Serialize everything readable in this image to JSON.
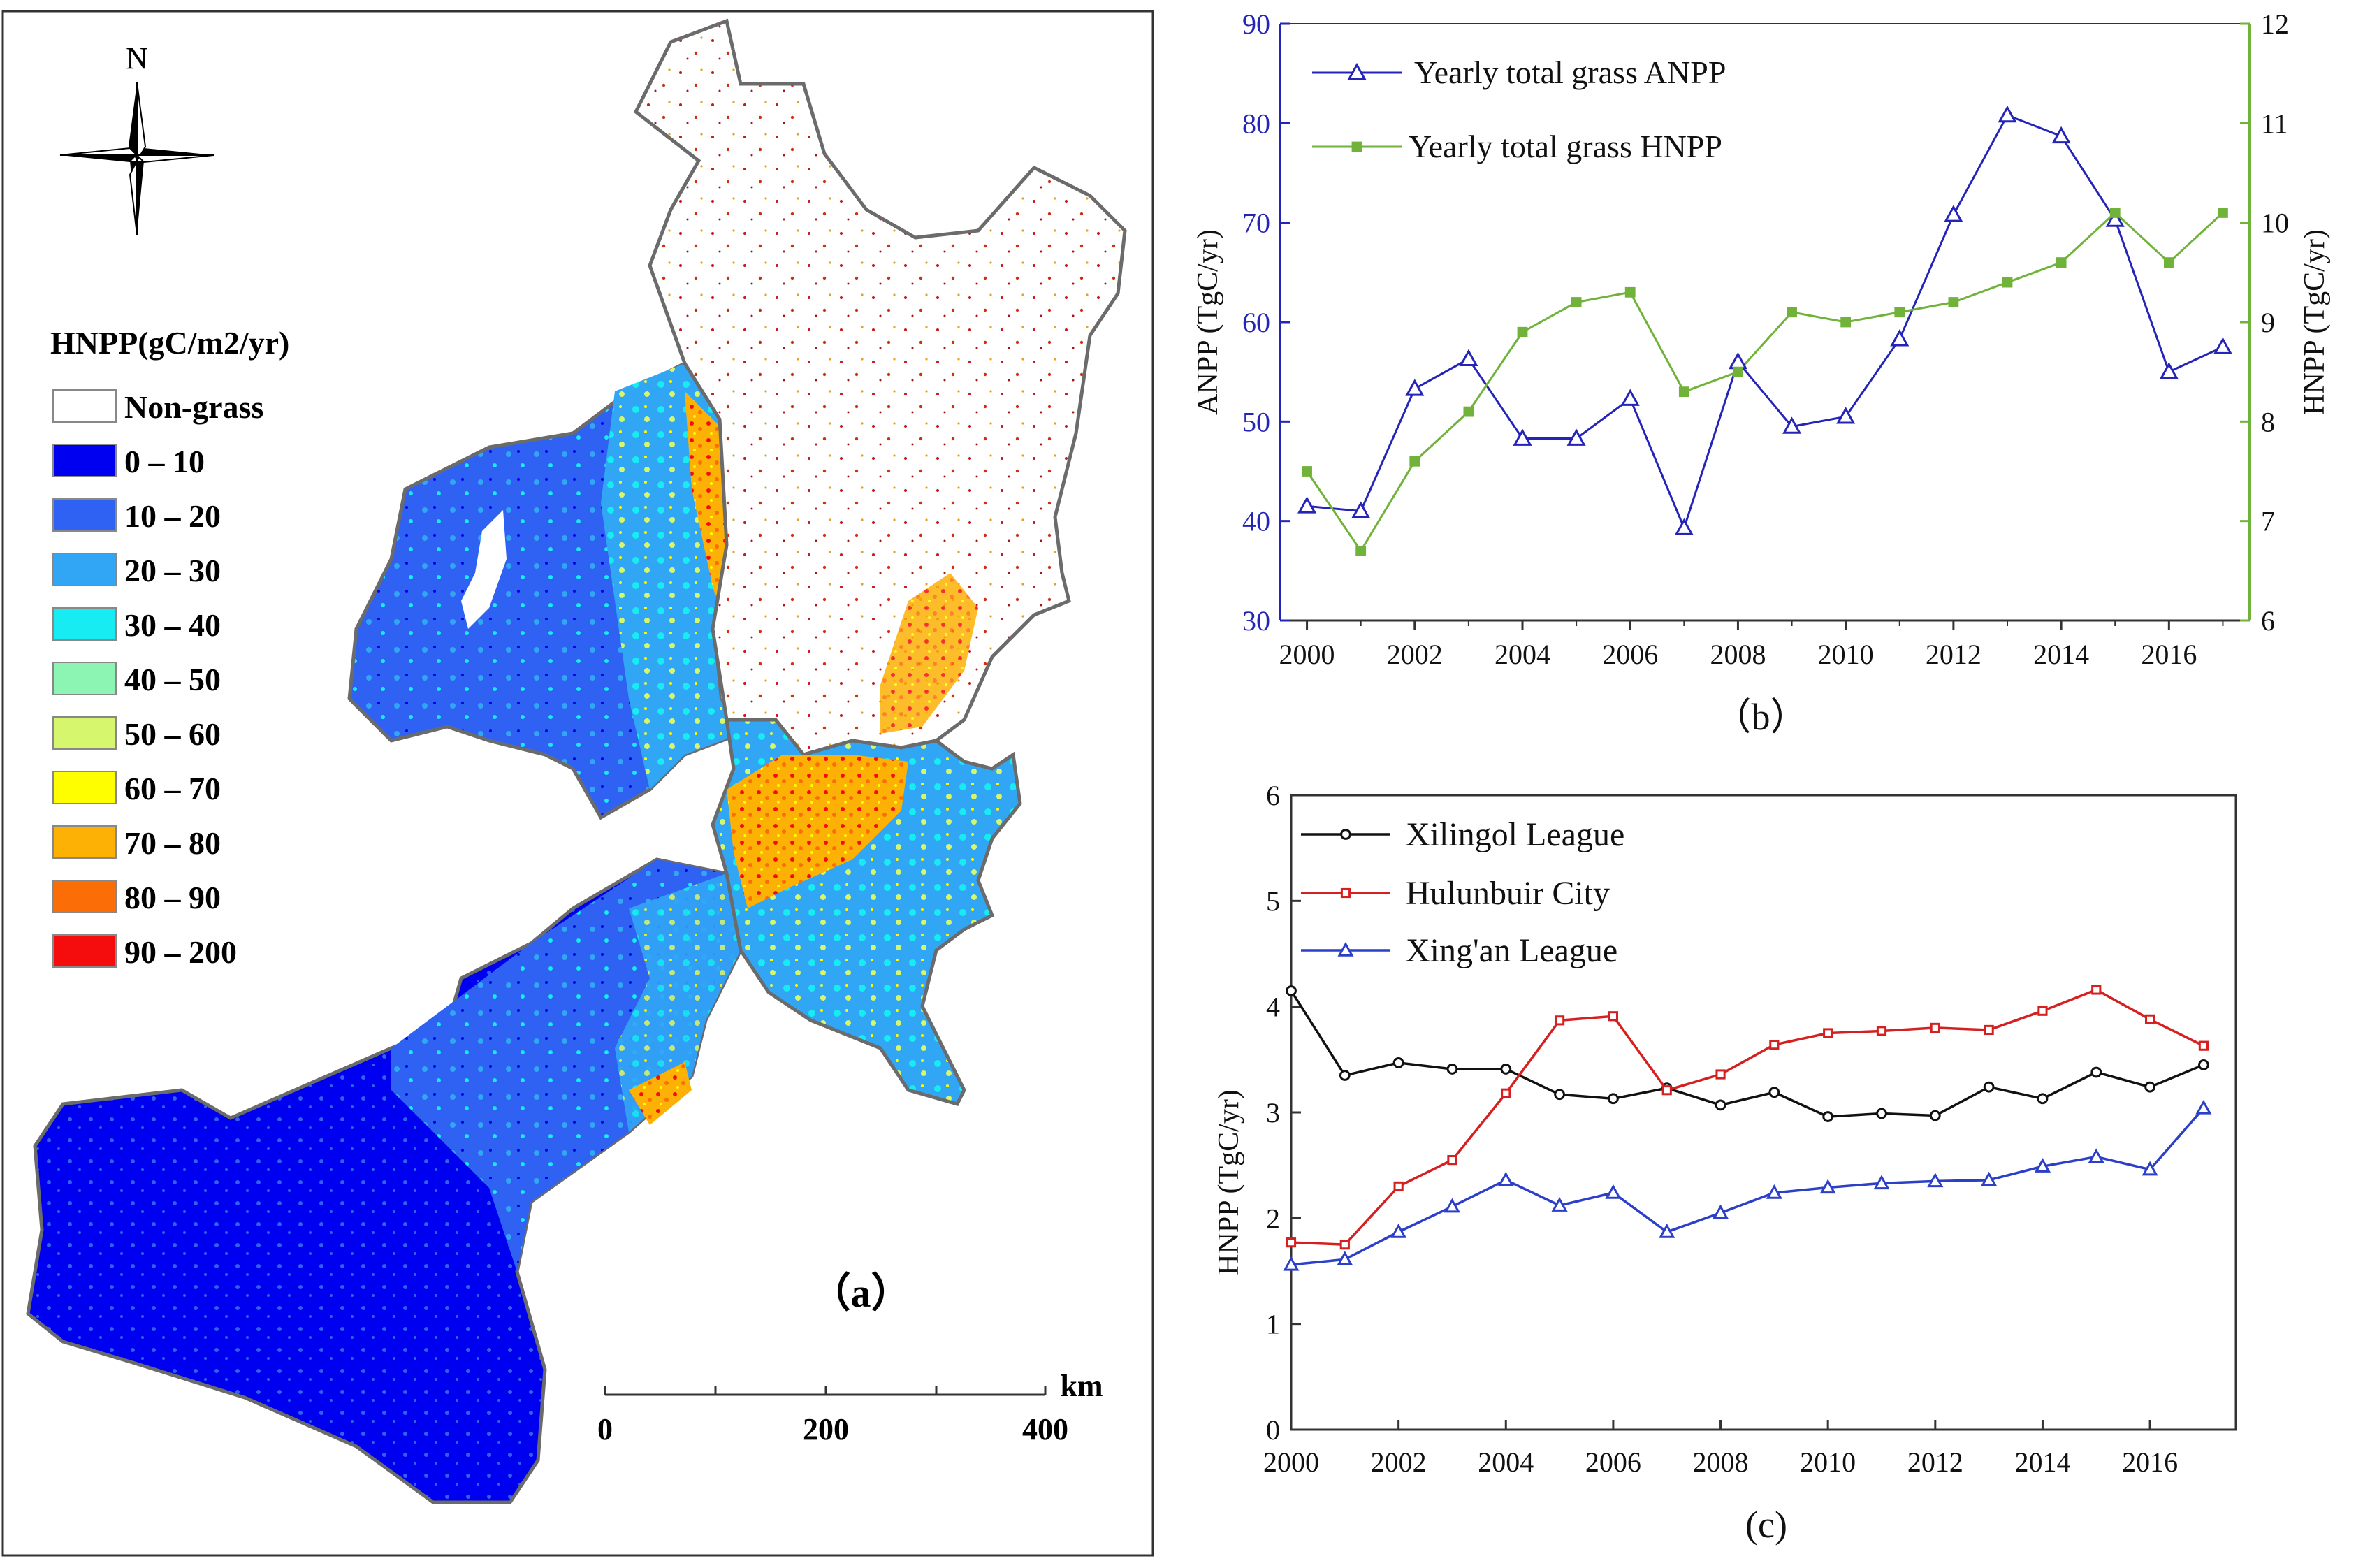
{
  "map": {
    "north_label": "N",
    "legend_title": "HNPP(gC/m2/yr)",
    "legend": [
      {
        "label": "Non-grass",
        "color": "#ffffff"
      },
      {
        "label": "0 – 10",
        "color": "#0000f0"
      },
      {
        "label": "10 – 20",
        "color": "#2f62f2"
      },
      {
        "label": "20 – 30",
        "color": "#31a6f5"
      },
      {
        "label": "30 – 40",
        "color": "#17ecf2"
      },
      {
        "label": "40 – 50",
        "color": "#8cf5b4"
      },
      {
        "label": "50 – 60",
        "color": "#d5f66d"
      },
      {
        "label": "60 – 70",
        "color": "#fefe00"
      },
      {
        "label": "70 – 80",
        "color": "#fdb104"
      },
      {
        "label": "80 – 90",
        "color": "#fb6d06"
      },
      {
        "label": "90 – 200",
        "color": "#f50d0d"
      }
    ],
    "panel_label": "（a）",
    "scale_unit": "km",
    "scale_ticks": [
      "0",
      "200",
      "400"
    ]
  },
  "chart_data": [
    {
      "type": "line",
      "panel": "(b)",
      "panel_label": "（b）",
      "x": [
        2000,
        2001,
        2002,
        2003,
        2004,
        2005,
        2006,
        2007,
        2008,
        2009,
        2010,
        2011,
        2012,
        2013,
        2014,
        2015,
        2016,
        2017
      ],
      "xticks": [
        2000,
        2002,
        2004,
        2006,
        2008,
        2010,
        2012,
        2014,
        2016
      ],
      "xlim": [
        1999.5,
        2017.5
      ],
      "ylabel": "ANPP (TgC/yr)",
      "ylim": [
        30,
        90
      ],
      "yticks": [
        30,
        40,
        50,
        60,
        70,
        80,
        90
      ],
      "y2label": "HNPP (TgC/yr)",
      "y2lim": [
        6,
        12
      ],
      "y2ticks": [
        6,
        7,
        8,
        9,
        10,
        11,
        12
      ],
      "series": [
        {
          "name": "Yearly total grass ANPP",
          "axis": "left",
          "color": "#2424b8",
          "marker": "triangle",
          "values": [
            41.5,
            41.0,
            53.3,
            56.3,
            48.3,
            48.3,
            52.3,
            39.3,
            56.0,
            49.5,
            50.5,
            58.3,
            70.8,
            80.8,
            78.7,
            70.3,
            55.0,
            57.5
          ]
        },
        {
          "name": "Yearly total grass HNPP",
          "axis": "right",
          "color": "#70b23a",
          "marker": "square",
          "values": [
            7.5,
            6.7,
            7.6,
            8.1,
            8.9,
            9.2,
            9.3,
            8.3,
            8.5,
            9.1,
            9.0,
            9.1,
            9.2,
            9.4,
            9.6,
            10.1,
            9.6,
            10.1
          ]
        }
      ]
    },
    {
      "type": "line",
      "panel": "(c)",
      "panel_label": "(c)",
      "x": [
        2000,
        2001,
        2002,
        2003,
        2004,
        2005,
        2006,
        2007,
        2008,
        2009,
        2010,
        2011,
        2012,
        2013,
        2014,
        2015,
        2016,
        2017
      ],
      "xticks": [
        2000,
        2002,
        2004,
        2006,
        2008,
        2010,
        2012,
        2014,
        2016
      ],
      "xlim": [
        2000,
        2017.6
      ],
      "ylabel": "HNPP (TgC/yr)",
      "ylim": [
        0,
        6
      ],
      "yticks": [
        0,
        1,
        2,
        3,
        4,
        5,
        6
      ],
      "series": [
        {
          "name": "Xilingol League",
          "color": "#111111",
          "marker": "circle",
          "values": [
            4.15,
            3.35,
            3.47,
            3.41,
            3.41,
            3.17,
            3.13,
            3.23,
            3.07,
            3.19,
            2.96,
            2.99,
            2.97,
            3.24,
            3.13,
            3.38,
            3.24,
            3.45
          ]
        },
        {
          "name": "Hulunbuir City",
          "color": "#d42020",
          "marker": "square",
          "values": [
            1.77,
            1.75,
            2.3,
            2.55,
            3.18,
            3.87,
            3.91,
            3.21,
            3.36,
            3.64,
            3.75,
            3.77,
            3.8,
            3.78,
            3.96,
            4.16,
            3.88,
            3.63
          ]
        },
        {
          "name": "Xing'an League",
          "color": "#2b3fc8",
          "marker": "triangle",
          "values": [
            1.56,
            1.61,
            1.87,
            2.11,
            2.36,
            2.12,
            2.24,
            1.87,
            2.05,
            2.24,
            2.29,
            2.33,
            2.35,
            2.36,
            2.49,
            2.58,
            2.46,
            3.04
          ]
        }
      ]
    }
  ]
}
